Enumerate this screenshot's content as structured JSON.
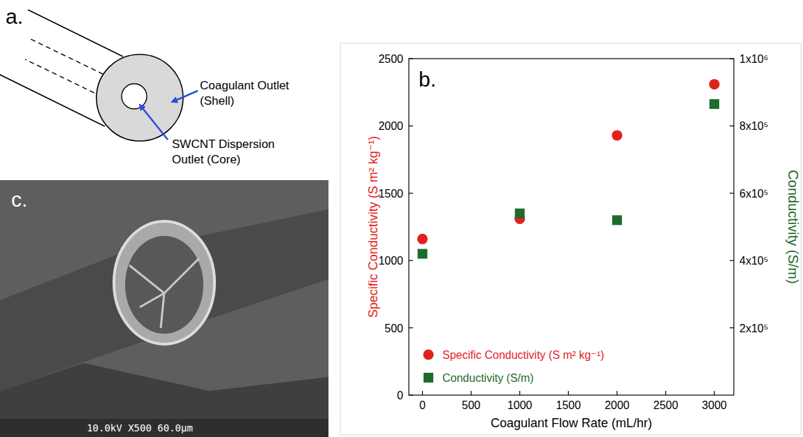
{
  "panels": {
    "a": {
      "label": "a.",
      "shell_label": [
        "Coagulant Outlet",
        "(Shell)"
      ],
      "core_label": [
        "SWCNT Dispersion",
        "Outlet (Core)"
      ]
    },
    "c": {
      "label": "c.",
      "info_bar": "10.0kV X500 60.0μm"
    }
  },
  "chart_data": {
    "type": "scatter",
    "annotations": [
      "b."
    ],
    "x_label": "Coagulant Flow Rate (mL/hr)",
    "y_label": "Specific Conductivity (S m² kg⁻¹)",
    "y2_label": "Conductivity (S/m)",
    "x": [
      0,
      1000,
      2000,
      3000
    ],
    "series": [
      {
        "name": "Specific Conductivity (S m² kg⁻¹)",
        "color": "#e3211c",
        "marker": "circle",
        "values": [
          1160,
          1310,
          1930,
          2310
        ]
      },
      {
        "name": "Conductivity (S/m)",
        "color": "#1e6b2c",
        "marker": "square",
        "axis": "y2",
        "values": [
          420000,
          540000,
          520000,
          865000
        ]
      }
    ],
    "xlim": [
      -140,
      3200
    ],
    "xticks": [
      0,
      500,
      1000,
      1500,
      2000,
      2500,
      3000
    ],
    "ylim": [
      0,
      2500
    ],
    "yticks": [
      0,
      500,
      1000,
      1500,
      2000,
      2500
    ],
    "y2lim": [
      0,
      1000000
    ],
    "y2ticks": [
      {
        "value": 200000,
        "label": "2x10⁵"
      },
      {
        "value": 400000,
        "label": "4x10⁵"
      },
      {
        "value": 600000,
        "label": "6x10⁵"
      },
      {
        "value": 800000,
        "label": "8x10⁵"
      },
      {
        "value": 1000000,
        "label": "1x10⁶"
      }
    ],
    "legend": "lower left",
    "grid": false
  }
}
